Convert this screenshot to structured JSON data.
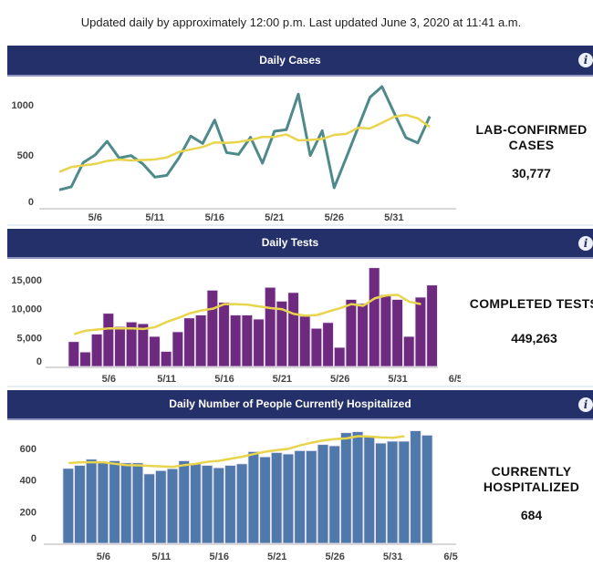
{
  "updated_text": "Updated daily by approximately 12:00 p.m. Last updated June 3, 2020 at 11:41 a.m.",
  "colors": {
    "header_bg": "#23306a",
    "cases_line": "#4e8a8a",
    "avg_line": "#e8d44d",
    "tests_bar": "#6e2a7e",
    "hosp_bar": "#4f79ab"
  },
  "sections": [
    {
      "title": "Daily Cases",
      "info_icon": "info-icon",
      "stat_label_1": "LAB-CONFIRMED",
      "stat_label_2": "CASES",
      "stat_value": "30,777"
    },
    {
      "title": "Daily Tests",
      "info_icon": "info-icon",
      "stat_label_1": "COMPLETED TESTS",
      "stat_label_2": "",
      "stat_value": "449,263"
    },
    {
      "title": "Daily Number of People Currently Hospitalized",
      "info_icon": "info-icon",
      "stat_label_1": "CURRENTLY",
      "stat_label_2": "HOSPITALIZED",
      "stat_value": "684"
    }
  ],
  "chart_data": [
    {
      "type": "line",
      "x_start": "5/3",
      "x_end": "6/3",
      "x_ticks": [
        "5/6",
        "5/11",
        "5/16",
        "5/21",
        "5/26",
        "5/31"
      ],
      "y_ticks": [
        "0",
        "500",
        "1000"
      ],
      "ylim": [
        0,
        1200
      ],
      "grid": false,
      "series": [
        {
          "values": [
            152,
            182,
            424,
            500,
            636,
            470,
            494,
            410,
            279,
            297,
            470,
            688,
            615,
            848,
            524,
            506,
            676,
            418,
            736,
            752,
            1106,
            494,
            742,
            173,
            470,
            773,
            1076,
            1182,
            924,
            673,
            621,
            885
          ]
        },
        {
          "values": [
            330,
            380,
            395,
            410,
            440,
            455,
            445,
            450,
            455,
            475,
            530,
            555,
            580,
            625,
            620,
            630,
            650,
            680,
            680,
            705,
            645,
            650,
            660,
            700,
            710,
            770,
            765,
            820,
            880,
            900,
            865,
            780
          ]
        }
      ]
    },
    {
      "type": "bar",
      "x_start": "5/3",
      "x_end": "6/3",
      "x_ticks": [
        "5/6",
        "5/11",
        "5/16",
        "5/21",
        "5/26",
        "5/31",
        "6/5"
      ],
      "y_ticks": [
        "0",
        "5,000",
        "10,000",
        "15,000"
      ],
      "ylim": [
        0,
        17500
      ],
      "grid": false,
      "values": [
        4300,
        2500,
        5600,
        9200,
        6900,
        7700,
        7400,
        5200,
        2600,
        6000,
        8400,
        8900,
        13200,
        11100,
        8900,
        8900,
        8200,
        13700,
        11300,
        12800,
        8700,
        6600,
        7600,
        3300,
        11600,
        10900,
        17100,
        12400,
        11600,
        5200,
        12000,
        14100
      ],
      "average": [
        5600,
        6200,
        6400,
        6600,
        6600,
        6600,
        6500,
        6800,
        7700,
        8400,
        9200,
        9700,
        10000,
        10800,
        10800,
        10700,
        10400,
        10100,
        9900,
        9100,
        8800,
        8900,
        9500,
        10100,
        10800,
        10500,
        11800,
        12300,
        12400,
        11200,
        10800
      ]
    },
    {
      "type": "bar",
      "x_start": "5/3",
      "x_end": "6/3",
      "x_ticks": [
        "5/6",
        "5/11",
        "5/16",
        "5/21",
        "5/26",
        "5/31",
        "6/5"
      ],
      "y_ticks": [
        "0",
        "200",
        "400",
        "600"
      ],
      "ylim": [
        0,
        720
      ],
      "grid": false,
      "values": [
        474,
        493,
        532,
        513,
        522,
        509,
        509,
        439,
        460,
        472,
        522,
        503,
        493,
        478,
        493,
        503,
        580,
        547,
        574,
        565,
        586,
        586,
        625,
        617,
        700,
        706,
        677,
        634,
        646,
        646,
        712,
        684
      ],
      "average": [
        508,
        513,
        513,
        513,
        503,
        495,
        493,
        490,
        487,
        484,
        495,
        503,
        516,
        522,
        535,
        548,
        565,
        580,
        590,
        598,
        620,
        637,
        651,
        660,
        664,
        678,
        676,
        670,
        668,
        678
      ]
    }
  ]
}
